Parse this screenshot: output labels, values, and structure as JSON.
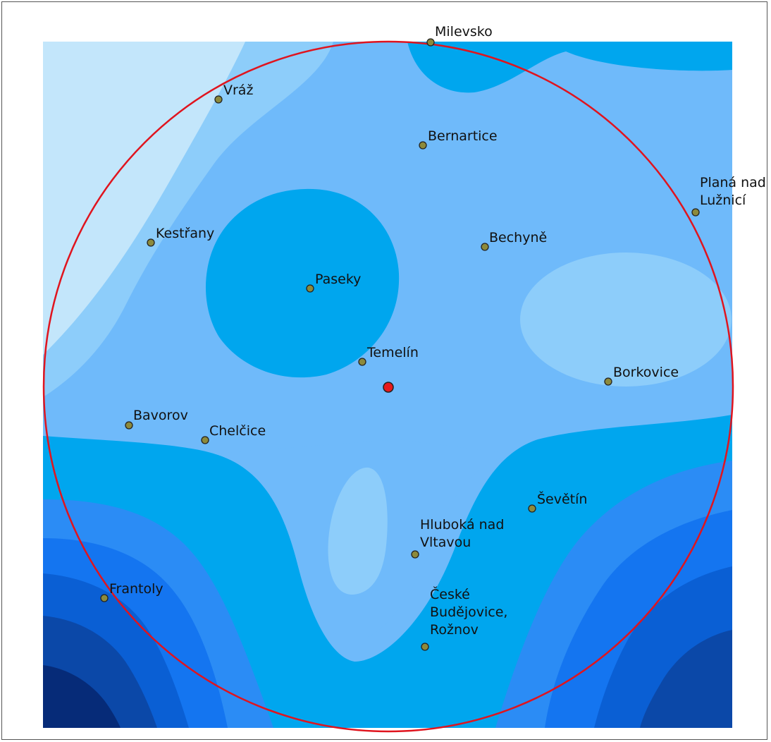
{
  "map": {
    "colors": {
      "level_1": "#c3e6fb",
      "level_2": "#8dcdfa",
      "level_3": "#6fbafa",
      "level_4": "#00a6ee",
      "level_5": "#2b8cf5",
      "level_6": "#1475f0",
      "level_7": "#0a5fd4",
      "level_8": "#0b48a8",
      "level_9": "#062b78",
      "circle": "#e0141e",
      "center_marker": "#e8191c",
      "town_marker": "#8c8a3c"
    },
    "towns": [
      {
        "id": "milevsko",
        "lines": [
          "Milevsko"
        ]
      },
      {
        "id": "vraz",
        "lines": [
          "Vráž"
        ]
      },
      {
        "id": "bernartice",
        "lines": [
          "Bernartice"
        ]
      },
      {
        "id": "plana-nad-luznici",
        "lines": [
          "Planá nad",
          "Lužnicí"
        ]
      },
      {
        "id": "kestrany",
        "lines": [
          "Kestřany"
        ]
      },
      {
        "id": "bechyne",
        "lines": [
          "Bechyně"
        ]
      },
      {
        "id": "paseky",
        "lines": [
          "Paseky"
        ]
      },
      {
        "id": "temelin",
        "lines": [
          "Temelín"
        ]
      },
      {
        "id": "borkovice",
        "lines": [
          "Borkovice"
        ]
      },
      {
        "id": "bavorov",
        "lines": [
          "Bavorov"
        ]
      },
      {
        "id": "chelcice",
        "lines": [
          "Chelčice"
        ]
      },
      {
        "id": "sevetin",
        "lines": [
          "Ševětín"
        ]
      },
      {
        "id": "hluboka-nad-vltavou",
        "lines": [
          "Hluboká nad",
          "Vltavou"
        ]
      },
      {
        "id": "frantoly",
        "lines": [
          "Frantoly"
        ]
      },
      {
        "id": "ceske-budejovice-roznov",
        "lines": [
          "České",
          "Budějovice,",
          "Rožnov"
        ]
      }
    ]
  }
}
